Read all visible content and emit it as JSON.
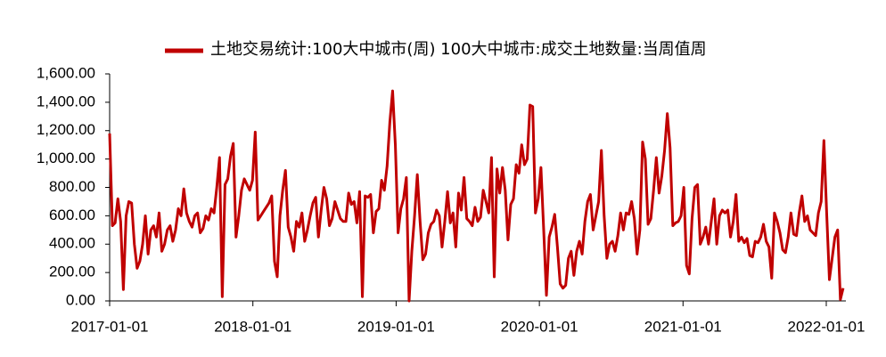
{
  "chart_data": {
    "type": "line",
    "x": [
      "2017-01-01",
      "2017-01-08",
      "2017-01-15",
      "2017-01-22",
      "2017-01-29",
      "2017-02-05",
      "2017-02-12",
      "2017-02-19",
      "2017-02-26",
      "2017-03-05",
      "2017-03-12",
      "2017-03-19",
      "2017-03-26",
      "2017-04-02",
      "2017-04-09",
      "2017-04-16",
      "2017-04-23",
      "2017-04-30",
      "2017-05-07",
      "2017-05-14",
      "2017-05-21",
      "2017-05-28",
      "2017-06-04",
      "2017-06-11",
      "2017-06-18",
      "2017-06-25",
      "2017-07-02",
      "2017-07-09",
      "2017-07-16",
      "2017-07-23",
      "2017-07-30",
      "2017-08-06",
      "2017-08-13",
      "2017-08-20",
      "2017-08-27",
      "2017-09-03",
      "2017-09-10",
      "2017-09-17",
      "2017-09-24",
      "2017-10-01",
      "2017-10-08",
      "2017-10-15",
      "2017-10-22",
      "2017-10-29",
      "2017-11-05",
      "2017-11-12",
      "2017-11-19",
      "2017-11-26",
      "2017-12-03",
      "2017-12-10",
      "2017-12-17",
      "2017-12-24",
      "2017-12-31",
      "2018-01-07",
      "2018-01-14",
      "2018-01-21",
      "2018-01-28",
      "2018-02-04",
      "2018-02-11",
      "2018-02-18",
      "2018-02-25",
      "2018-03-04",
      "2018-03-11",
      "2018-03-18",
      "2018-03-25",
      "2018-04-01",
      "2018-04-08",
      "2018-04-15",
      "2018-04-22",
      "2018-04-29",
      "2018-05-06",
      "2018-05-13",
      "2018-05-20",
      "2018-05-27",
      "2018-06-03",
      "2018-06-10",
      "2018-06-17",
      "2018-06-24",
      "2018-07-01",
      "2018-07-08",
      "2018-07-15",
      "2018-07-22",
      "2018-07-29",
      "2018-08-05",
      "2018-08-12",
      "2018-08-19",
      "2018-08-26",
      "2018-09-02",
      "2018-09-09",
      "2018-09-16",
      "2018-09-23",
      "2018-09-30",
      "2018-10-07",
      "2018-10-14",
      "2018-10-21",
      "2018-10-28",
      "2018-11-04",
      "2018-11-11",
      "2018-11-18",
      "2018-11-25",
      "2018-12-02",
      "2018-12-09",
      "2018-12-16",
      "2018-12-23",
      "2018-12-30",
      "2019-01-06",
      "2019-01-13",
      "2019-01-20",
      "2019-01-27",
      "2019-02-03",
      "2019-02-10",
      "2019-02-17",
      "2019-02-24",
      "2019-03-03",
      "2019-03-10",
      "2019-03-17",
      "2019-03-24",
      "2019-03-31",
      "2019-04-07",
      "2019-04-14",
      "2019-04-21",
      "2019-04-28",
      "2019-05-05",
      "2019-05-12",
      "2019-05-19",
      "2019-05-26",
      "2019-06-02",
      "2019-06-09",
      "2019-06-16",
      "2019-06-23",
      "2019-06-30",
      "2019-07-07",
      "2019-07-14",
      "2019-07-21",
      "2019-07-28",
      "2019-08-04",
      "2019-08-11",
      "2019-08-18",
      "2019-08-25",
      "2019-09-01",
      "2019-09-08",
      "2019-09-15",
      "2019-09-22",
      "2019-09-29",
      "2019-10-06",
      "2019-10-13",
      "2019-10-20",
      "2019-10-27",
      "2019-11-03",
      "2019-11-10",
      "2019-11-17",
      "2019-11-24",
      "2019-12-01",
      "2019-12-08",
      "2019-12-15",
      "2019-12-22",
      "2019-12-29",
      "2020-01-05",
      "2020-01-12",
      "2020-01-19",
      "2020-01-26",
      "2020-02-02",
      "2020-02-09",
      "2020-02-16",
      "2020-02-23",
      "2020-03-01",
      "2020-03-08",
      "2020-03-15",
      "2020-03-22",
      "2020-03-29",
      "2020-04-05",
      "2020-04-12",
      "2020-04-19",
      "2020-04-26",
      "2020-05-03",
      "2020-05-10",
      "2020-05-17",
      "2020-05-24",
      "2020-05-31",
      "2020-06-07",
      "2020-06-14",
      "2020-06-21",
      "2020-06-28",
      "2020-07-05",
      "2020-07-12",
      "2020-07-19",
      "2020-07-26",
      "2020-08-02",
      "2020-08-09",
      "2020-08-16",
      "2020-08-23",
      "2020-08-30",
      "2020-09-06",
      "2020-09-13",
      "2020-09-20",
      "2020-09-27",
      "2020-10-04",
      "2020-10-11",
      "2020-10-18",
      "2020-10-25",
      "2020-11-01",
      "2020-11-08",
      "2020-11-15",
      "2020-11-22",
      "2020-11-29",
      "2020-12-06",
      "2020-12-13",
      "2020-12-20",
      "2020-12-27",
      "2021-01-03",
      "2021-01-10",
      "2021-01-17",
      "2021-01-24",
      "2021-01-31",
      "2021-02-07",
      "2021-02-14",
      "2021-02-21",
      "2021-02-28",
      "2021-03-07",
      "2021-03-14",
      "2021-03-21",
      "2021-03-28",
      "2021-04-04",
      "2021-04-11",
      "2021-04-18",
      "2021-04-25",
      "2021-05-02",
      "2021-05-09",
      "2021-05-16",
      "2021-05-23",
      "2021-05-30",
      "2021-06-06",
      "2021-06-13",
      "2021-06-20",
      "2021-06-27",
      "2021-07-04",
      "2021-07-11",
      "2021-07-18",
      "2021-07-25",
      "2021-08-01",
      "2021-08-08",
      "2021-08-15",
      "2021-08-22",
      "2021-08-29",
      "2021-09-05",
      "2021-09-12",
      "2021-09-19",
      "2021-09-26",
      "2021-10-03",
      "2021-10-10",
      "2021-10-17",
      "2021-10-24",
      "2021-10-31",
      "2021-11-07",
      "2021-11-14",
      "2021-11-21",
      "2021-11-28",
      "2021-12-05",
      "2021-12-12",
      "2021-12-19",
      "2021-12-26",
      "2022-01-02",
      "2022-01-09",
      "2022-01-16",
      "2022-01-23",
      "2022-01-30",
      "2022-02-06",
      "2022-02-13"
    ],
    "series": [
      {
        "name": "土地交易统计:100大中城市(周) 100大中城市:成交土地数量:当周值周",
        "color": "#c00000",
        "values": [
          1180,
          530,
          550,
          720,
          560,
          80,
          600,
          700,
          690,
          400,
          230,
          280,
          400,
          600,
          330,
          500,
          530,
          450,
          620,
          350,
          400,
          500,
          530,
          420,
          500,
          650,
          600,
          790,
          620,
          560,
          520,
          600,
          620,
          480,
          510,
          600,
          570,
          650,
          620,
          800,
          1010,
          30,
          820,
          860,
          1020,
          1110,
          450,
          600,
          780,
          860,
          820,
          780,
          850,
          1190,
          570,
          600,
          630,
          660,
          690,
          740,
          280,
          170,
          600,
          780,
          920,
          520,
          450,
          350,
          560,
          520,
          620,
          420,
          500,
          600,
          690,
          730,
          450,
          640,
          800,
          720,
          530,
          580,
          700,
          640,
          580,
          560,
          560,
          760,
          680,
          700,
          550,
          770,
          30,
          740,
          730,
          750,
          480,
          630,
          650,
          850,
          780,
          950,
          1260,
          1480,
          1100,
          480,
          650,
          720,
          870,
          0,
          350,
          600,
          890,
          560,
          290,
          330,
          480,
          540,
          560,
          640,
          600,
          380,
          560,
          770,
          550,
          620,
          380,
          760,
          640,
          870,
          580,
          560,
          530,
          660,
          560,
          590,
          780,
          700,
          620,
          1010,
          170,
          930,
          760,
          940,
          780,
          430,
          680,
          720,
          960,
          900,
          1100,
          960,
          1000,
          1380,
          1370,
          620,
          720,
          940,
          500,
          40,
          450,
          520,
          610,
          380,
          120,
          90,
          110,
          300,
          350,
          180,
          350,
          420,
          330,
          560,
          700,
          750,
          500,
          600,
          700,
          1060,
          600,
          300,
          400,
          420,
          350,
          460,
          620,
          500,
          620,
          610,
          700,
          580,
          330,
          500,
          1120,
          1000,
          540,
          580,
          780,
          1010,
          760,
          880,
          1060,
          1320,
          1080,
          530,
          550,
          560,
          600,
          800,
          250,
          190,
          580,
          800,
          820,
          400,
          450,
          520,
          400,
          560,
          720,
          400,
          600,
          640,
          620,
          640,
          450,
          560,
          750,
          420,
          450,
          410,
          440,
          320,
          310,
          420,
          410,
          450,
          540,
          420,
          380,
          160,
          620,
          560,
          480,
          360,
          340,
          450,
          620,
          470,
          460,
          620,
          740,
          560,
          600,
          500,
          480,
          460,
          620,
          700,
          1130,
          620,
          150,
          300,
          450,
          500,
          10,
          90
        ]
      }
    ],
    "xlim": [
      "2017-01-01",
      "2022-02-20"
    ],
    "xticks": [
      "2017-01-01",
      "2018-01-01",
      "2019-01-01",
      "2020-01-01",
      "2021-01-01",
      "2022-01-01"
    ],
    "ylim": [
      0,
      1600
    ],
    "yticks": [
      {
        "value": 0,
        "label": "0.00"
      },
      {
        "value": 200,
        "label": "200.00"
      },
      {
        "value": 400,
        "label": "400.00"
      },
      {
        "value": 600,
        "label": "600.00"
      },
      {
        "value": 800,
        "label": "800.00"
      },
      {
        "value": 1000,
        "label": "1,000.00"
      },
      {
        "value": 1200,
        "label": "1,200.00"
      },
      {
        "value": 1400,
        "label": "1,400.00"
      },
      {
        "value": 1600,
        "label": "1,600.00"
      }
    ],
    "grid": false,
    "legend": "top"
  }
}
